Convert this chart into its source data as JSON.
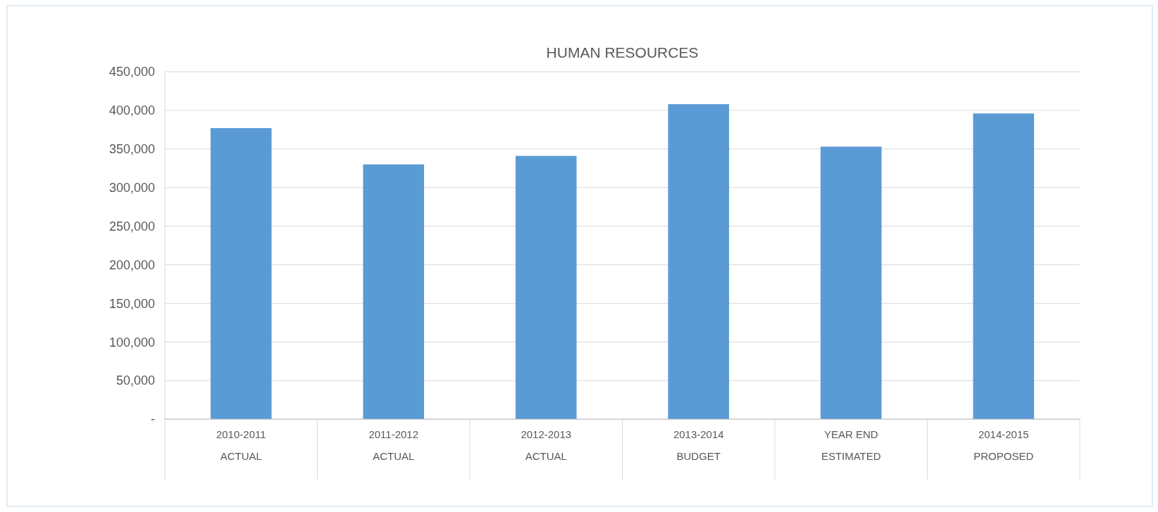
{
  "chart_data": {
    "type": "bar",
    "title": "HUMAN RESOURCES",
    "categories": [
      "2010-2011\nACTUAL",
      "2011-2012\nACTUAL",
      "2012-2013\nACTUAL",
      "2013-2014\nBUDGET",
      "YEAR END\nESTIMATED",
      "2014-2015\nPROPOSED"
    ],
    "values": [
      377000,
      330000,
      341000,
      408000,
      353000,
      396000
    ],
    "color": "#5b9bd5",
    "ylim": [
      0,
      450000
    ],
    "yticks": [
      {
        "value": 0,
        "label": "-"
      },
      {
        "value": 50000,
        "label": "50,000"
      },
      {
        "value": 100000,
        "label": "100,000"
      },
      {
        "value": 150000,
        "label": "150,000"
      },
      {
        "value": 200000,
        "label": "200,000"
      },
      {
        "value": 250000,
        "label": "250,000"
      },
      {
        "value": 300000,
        "label": "300,000"
      },
      {
        "value": 350000,
        "label": "350,000"
      },
      {
        "value": 400000,
        "label": "400,000"
      },
      {
        "value": 450000,
        "label": "450,000"
      }
    ],
    "grid": "y"
  }
}
